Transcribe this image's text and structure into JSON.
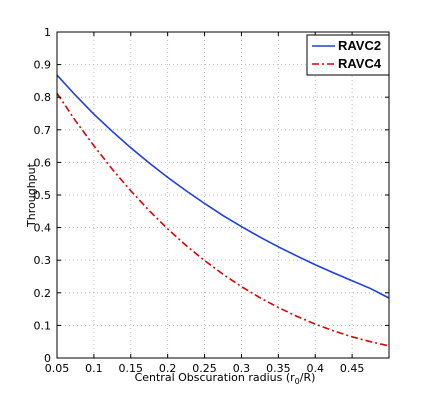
{
  "chart_data": {
    "type": "line",
    "xlabel": "Central Obscuration radius (r",
    "xlabel_sub": "0",
    "xlabel_tail": "/R)",
    "ylabel": "Throughput",
    "xlim": [
      0.05,
      0.5
    ],
    "ylim": [
      0,
      1
    ],
    "x_ticks": [
      0.05,
      0.1,
      0.15,
      0.2,
      0.25,
      0.3,
      0.35,
      0.4,
      0.45
    ],
    "x_tick_labels": [
      "0.05",
      "0.1",
      "0.15",
      "0.2",
      "0.25",
      "0.3",
      "0.35",
      "0.4",
      "0.45"
    ],
    "y_ticks": [
      0,
      0.1,
      0.2,
      0.3,
      0.4,
      0.5,
      0.6,
      0.7,
      0.8,
      0.9,
      1
    ],
    "y_tick_labels": [
      "0",
      "0.1",
      "0.2",
      "0.3",
      "0.4",
      "0.5",
      "0.6",
      "0.7",
      "0.8",
      "0.9",
      "1"
    ],
    "grid": true,
    "legend_position": "top-right",
    "series": [
      {
        "name": "RAVC2",
        "color": "#1f3fe0",
        "dash": "solid",
        "x": [
          0.05,
          0.075,
          0.1,
          0.125,
          0.15,
          0.175,
          0.2,
          0.225,
          0.25,
          0.275,
          0.3,
          0.325,
          0.35,
          0.375,
          0.4,
          0.425,
          0.45,
          0.475,
          0.5
        ],
        "y": [
          0.868,
          0.806,
          0.748,
          0.695,
          0.645,
          0.598,
          0.554,
          0.513,
          0.474,
          0.437,
          0.403,
          0.371,
          0.341,
          0.313,
          0.286,
          0.261,
          0.237,
          0.213,
          0.184
        ]
      },
      {
        "name": "RAVC4",
        "color": "#e00000",
        "dash": "dashdot",
        "x": [
          0.05,
          0.075,
          0.1,
          0.125,
          0.15,
          0.175,
          0.2,
          0.225,
          0.25,
          0.275,
          0.3,
          0.325,
          0.35,
          0.375,
          0.4,
          0.425,
          0.45,
          0.475,
          0.5
        ],
        "y": [
          0.812,
          0.728,
          0.651,
          0.579,
          0.513,
          0.452,
          0.396,
          0.345,
          0.299,
          0.257,
          0.219,
          0.185,
          0.155,
          0.128,
          0.104,
          0.083,
          0.065,
          0.05,
          0.037
        ]
      }
    ]
  }
}
